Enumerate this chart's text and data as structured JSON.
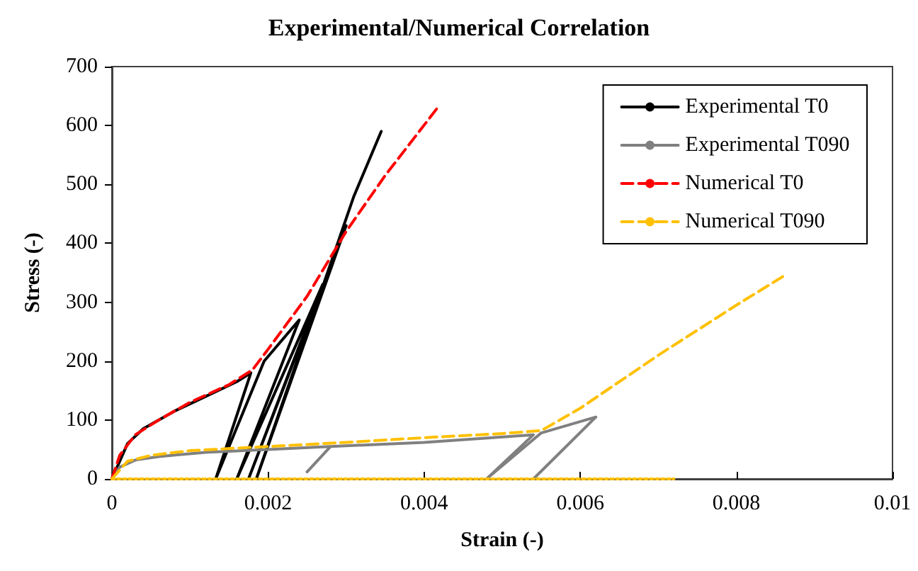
{
  "chart_data": {
    "type": "line",
    "title": "Experimental/Numerical Correlation",
    "xlabel": "Strain (-)",
    "ylabel": "Stress (-)",
    "xlim": [
      0,
      0.01
    ],
    "xticks": [
      0,
      0.002,
      0.004,
      0.006,
      0.008,
      0.01
    ],
    "ylim": [
      0,
      700
    ],
    "yticks": [
      0,
      100,
      200,
      300,
      400,
      500,
      600,
      700
    ],
    "grid": false,
    "legend": "top right",
    "marker": "none",
    "series": [
      {
        "name": "Experimental T0",
        "color": "#000000",
        "line_style": "solid",
        "x": [
          0,
          0.0002,
          0.0004,
          0.0008,
          0.0012,
          0.0016,
          0.00178,
          0.00133,
          0.00195,
          0.0024,
          0.0016,
          0.0027,
          0.00175,
          0.003,
          0.00185,
          0.0031,
          0.00345
        ],
        "values": [
          0,
          60,
          85,
          115,
          140,
          165,
          180,
          0,
          200,
          270,
          0,
          330,
          0,
          430,
          0,
          480,
          590
        ]
      },
      {
        "name": "Experimental T090",
        "color": "#808080",
        "line_style": "solid",
        "x": [
          0,
          0.0001,
          0.0003,
          0.0006,
          0.0012,
          0.002,
          0.0028,
          0.0025,
          0.0028,
          0.004,
          0.0054,
          0.0048,
          0.0055,
          0.0062,
          0.0054
        ],
        "values": [
          0,
          20,
          32,
          38,
          45,
          50,
          55,
          12,
          55,
          62,
          75,
          0,
          78,
          105,
          0
        ]
      },
      {
        "name": "Numerical T0",
        "color": "#ff0000",
        "line_style": "dashed",
        "x": [
          0,
          0.0001,
          0.0003,
          0.0006,
          0.001,
          0.0015,
          0.0018,
          0.002,
          0.0025,
          0.003,
          0.0035,
          0.0042
        ],
        "values": [
          0,
          40,
          75,
          100,
          130,
          160,
          185,
          220,
          310,
          420,
          515,
          635
        ]
      },
      {
        "name": "Numerical T090",
        "color": "#ffc000",
        "line_style": "dashed",
        "x": [
          0,
          0.0002,
          0.0005,
          0.001,
          0.002,
          0.003,
          0.004,
          0.005,
          0.0055,
          0.006,
          0.007,
          0.008,
          0.0086
        ],
        "values": [
          0,
          30,
          40,
          48,
          55,
          62,
          70,
          77,
          82,
          120,
          210,
          295,
          344
        ]
      },
      {
        "color": "#ffc000",
        "line_style": "dotted",
        "x": [
          0,
          0.0072
        ],
        "values": [
          0,
          0
        ]
      }
    ]
  }
}
